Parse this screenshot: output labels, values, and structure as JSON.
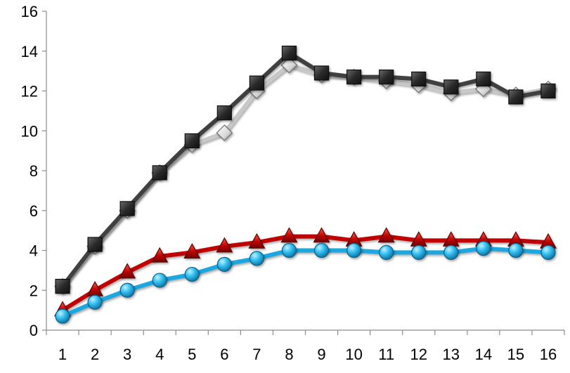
{
  "chart_data": {
    "type": "line",
    "title": "",
    "xlabel": "",
    "ylabel": "",
    "categories": [
      "1",
      "2",
      "3",
      "4",
      "5",
      "6",
      "7",
      "8",
      "9",
      "10",
      "11",
      "12",
      "13",
      "14",
      "15",
      "16"
    ],
    "ylim": [
      0,
      16
    ],
    "yticks": [
      0,
      2,
      4,
      6,
      8,
      10,
      12,
      14,
      16
    ],
    "grid": false,
    "legend": "none",
    "series": [
      {
        "values": [
          2.2,
          4.2,
          6.0,
          7.9,
          9.3,
          9.9,
          12.0,
          13.3,
          12.8,
          12.7,
          12.5,
          12.3,
          11.9,
          12.1,
          11.8,
          12.1
        ],
        "color": "#c8c8c8",
        "marker": "diamond"
      },
      {
        "values": [
          2.2,
          4.3,
          6.1,
          7.9,
          9.5,
          10.9,
          12.4,
          13.9,
          12.9,
          12.7,
          12.7,
          12.6,
          12.2,
          12.6,
          11.7,
          12.0
        ],
        "color": "#404040",
        "marker": "square"
      },
      {
        "values": [
          1.0,
          2.0,
          2.9,
          3.7,
          3.9,
          4.2,
          4.4,
          4.7,
          4.7,
          4.5,
          4.7,
          4.5,
          4.5,
          4.5,
          4.5,
          4.4
        ],
        "color": "#c00000",
        "marker": "triangle"
      },
      {
        "values": [
          0.7,
          1.4,
          2.0,
          2.5,
          2.8,
          3.3,
          3.6,
          4.0,
          4.0,
          4.0,
          3.9,
          3.9,
          3.9,
          4.1,
          4.0,
          3.9
        ],
        "color": "#1ca7e0",
        "marker": "circle"
      }
    ]
  }
}
